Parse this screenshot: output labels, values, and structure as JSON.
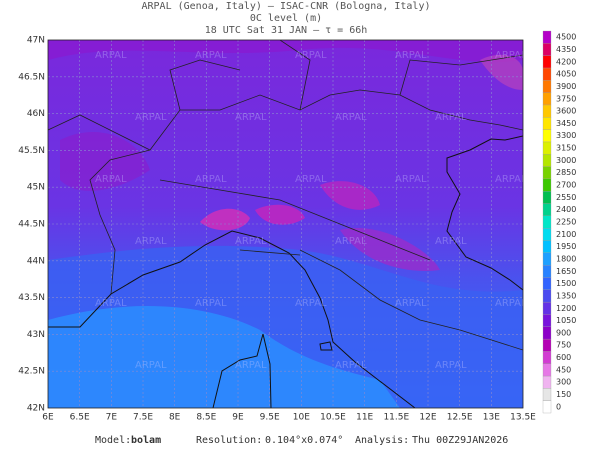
{
  "header": {
    "line1": "ARPAL (Genoa, Italy)  –  ISAC-CNR (Bologna, Italy)",
    "line2": "0C level (m)",
    "line3": "18 UTC Sat 31 JAN  –  τ = 66h"
  },
  "watermark": "ARPAL",
  "lon_labels": [
    "6E",
    "6.5E",
    "7E",
    "7.5E",
    "8E",
    "8.5E",
    "9E",
    "9.5E",
    "10E",
    "10.5E",
    "11E",
    "11.5E",
    "12E",
    "12.5E",
    "13E",
    "13.5E"
  ],
  "lat_labels": [
    "42N",
    "42.5N",
    "43N",
    "43.5N",
    "44N",
    "44.5N",
    "45N",
    "45.5N",
    "46N",
    "46.5N",
    "47N"
  ],
  "colorbar": {
    "labels": [
      "0",
      "150",
      "300",
      "450",
      "600",
      "750",
      "900",
      "1050",
      "1200",
      "1350",
      "1500",
      "1650",
      "1800",
      "1950",
      "2100",
      "2250",
      "2400",
      "2550",
      "2700",
      "2850",
      "3000",
      "3150",
      "3300",
      "3450",
      "3600",
      "3750",
      "3900",
      "4050",
      "4200",
      "4350",
      "4500"
    ],
    "colors": [
      "#ffffff",
      "#e6e6e6",
      "#f0b4f0",
      "#e678e6",
      "#d23cd2",
      "#b400b4",
      "#8c00c8",
      "#7814dc",
      "#6432e6",
      "#4b4bf0",
      "#3264ff",
      "#2882ff",
      "#1ea0ff",
      "#00c0ff",
      "#00dcf0",
      "#00e6c8",
      "#00d28c",
      "#00be50",
      "#3cc800",
      "#78d200",
      "#b4e600",
      "#dcf000",
      "#ffff00",
      "#ffe600",
      "#ffc800",
      "#ffa000",
      "#ff7800",
      "#ff4600",
      "#ff0000",
      "#dc0064",
      "#b400c8"
    ]
  },
  "footer": {
    "model_label": "Model:",
    "model": "bolam",
    "resolution_label": "Resolution:",
    "resolution": "0.104°x0.074°",
    "analysis_label": "Analysis:",
    "analysis": "Thu 00Z29JAN2026"
  }
}
